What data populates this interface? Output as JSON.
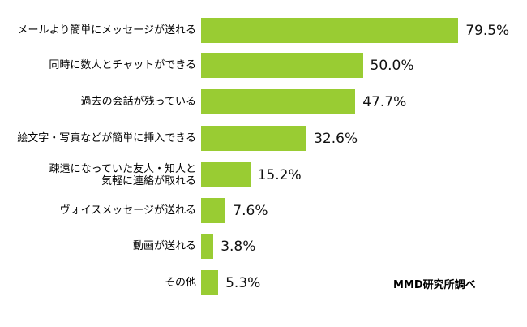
{
  "chart_data": {
    "type": "bar",
    "orientation": "horizontal",
    "title": "",
    "xlabel": "",
    "ylabel": "",
    "xlim": [
      0,
      100
    ],
    "grid": false,
    "legend": null,
    "bar_color": "#99cc33",
    "categories": [
      "メールより簡単にメッセージが送れる",
      "同時に数人とチャットができる",
      "過去の会話が残っている",
      "絵文字・写真などが簡単に挿入できる",
      "疎遠になっていた友人・知人と\n気軽に連絡が取れる",
      "ヴォイスメッセージが送れる",
      "動画が送れる",
      "その他"
    ],
    "values": [
      79.5,
      50.0,
      47.7,
      32.6,
      15.2,
      7.6,
      3.8,
      5.3
    ],
    "value_labels": [
      "79.5%",
      "50.0%",
      "47.7%",
      "32.6%",
      "15.2%",
      "7.6%",
      "3.8%",
      "5.3%"
    ],
    "source": "MMD研究所調べ"
  }
}
